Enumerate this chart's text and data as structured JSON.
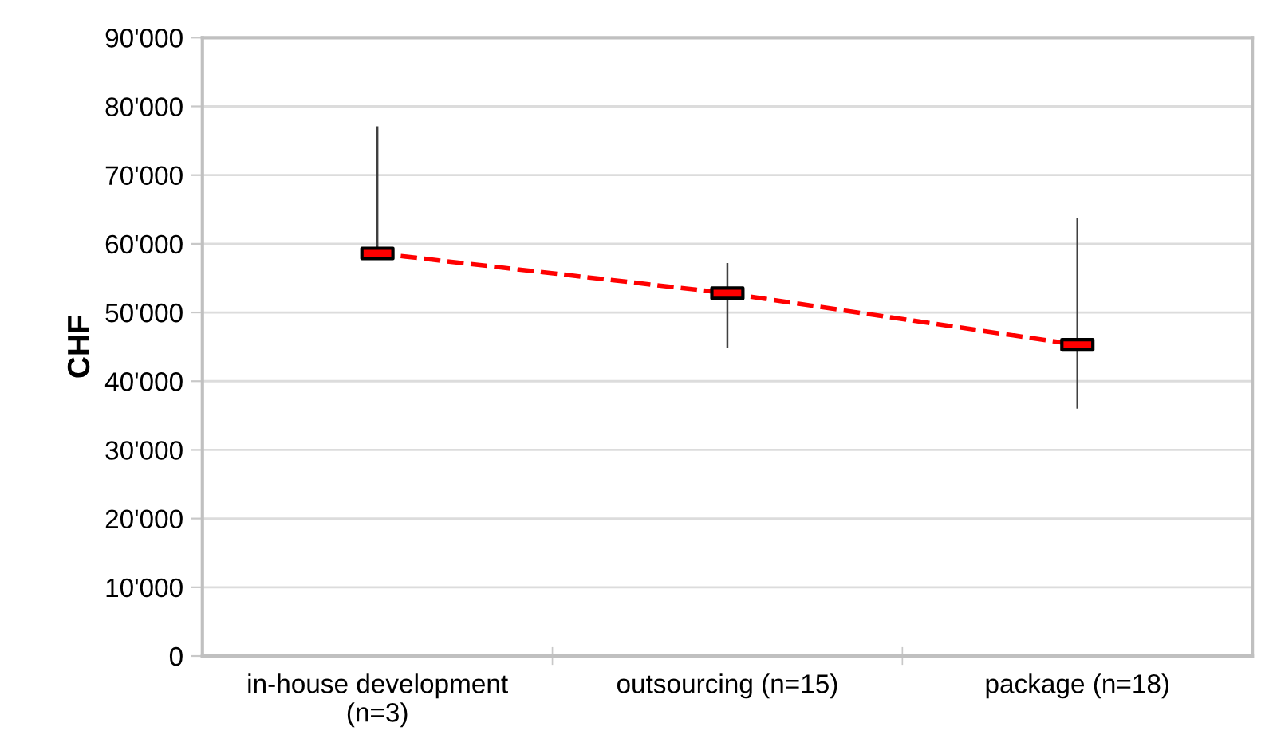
{
  "chart_data": {
    "type": "line",
    "ylabel": "CHF",
    "categories": [
      "in-house development\n(n=3)",
      "outsourcing (n=15)",
      "package (n=18)"
    ],
    "series": [
      {
        "color": "#ff0000",
        "values": [
          58600,
          52800,
          45300
        ],
        "errors": [
          [
            58600,
            77100
          ],
          [
            44800,
            57200
          ],
          [
            36000,
            63800
          ]
        ]
      }
    ],
    "ylim": [
      0,
      90000
    ],
    "yticks": [
      0,
      {
        "value": 10000,
        "label": "10'000"
      },
      {
        "value": 20000,
        "label": "20'000"
      },
      {
        "value": 30000,
        "label": "30'000"
      },
      {
        "value": 40000,
        "label": "40'000"
      },
      {
        "value": 50000,
        "label": "50'000"
      },
      {
        "value": 60000,
        "label": "60'000"
      },
      {
        "value": 70000,
        "label": "70'000"
      },
      {
        "value": 80000,
        "label": "80'000"
      },
      {
        "value": 90000,
        "label": "90'000"
      }
    ],
    "grid": "y",
    "marker": "square",
    "line_style": "dashed"
  }
}
